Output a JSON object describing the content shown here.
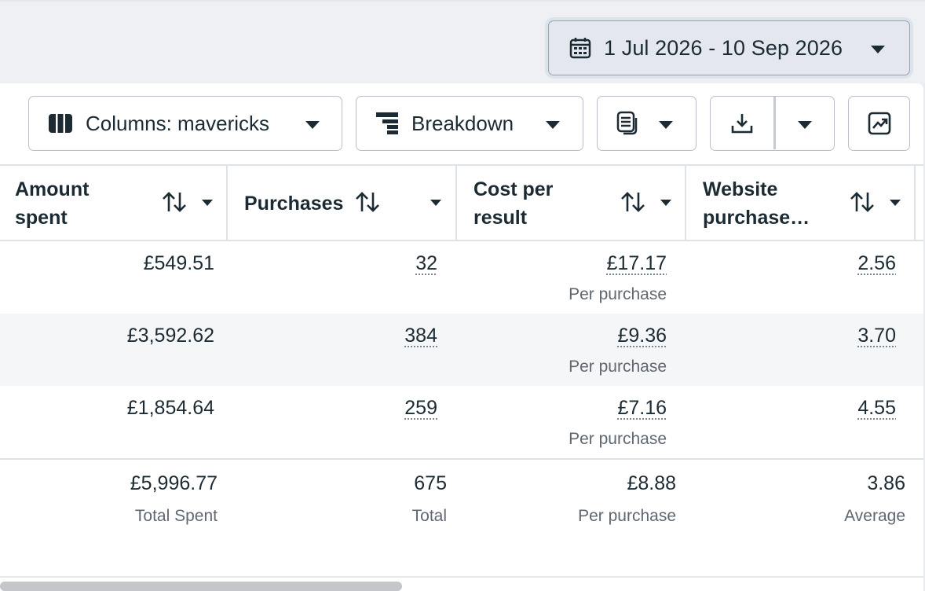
{
  "date_range": {
    "label": "1 Jul 2026 - 10 Sep 2026",
    "icon": "calendar-icon"
  },
  "toolbar": {
    "columns_label": "Columns: mavericks",
    "breakdown_label": "Breakdown",
    "reports_icon": "reports-icon",
    "export_icon": "download-icon",
    "chart_icon": "chart-icon"
  },
  "table": {
    "headers": [
      {
        "line1": "Amount",
        "line2": "spent"
      },
      {
        "line1": "Purchases"
      },
      {
        "line1": "Cost per",
        "line2": "result"
      },
      {
        "line1": "Website",
        "line2": "purchase…"
      }
    ],
    "rows": [
      {
        "amount_spent": "£549.51",
        "purchases": "32",
        "cost_per_result": "£17.17",
        "cost_per_result_sub": "Per purchase",
        "website_purchase": "2.56"
      },
      {
        "amount_spent": "£3,592.62",
        "purchases": "384",
        "cost_per_result": "£9.36",
        "cost_per_result_sub": "Per purchase",
        "website_purchase": "3.70"
      },
      {
        "amount_spent": "£1,854.64",
        "purchases": "259",
        "cost_per_result": "£7.16",
        "cost_per_result_sub": "Per purchase",
        "website_purchase": "4.55"
      }
    ],
    "summary": {
      "amount_spent": "£5,996.77",
      "amount_spent_sub": "Total Spent",
      "purchases": "675",
      "purchases_sub": "Total",
      "cost_per_result": "£8.88",
      "cost_per_result_sub": "Per purchase",
      "website_purchase": "3.86",
      "website_purchase_sub": "Average"
    }
  },
  "colors": {
    "text": "#1c2b33",
    "muted": "#606770",
    "border": "#dfe2e6",
    "row_alt": "#f5f6f7"
  }
}
